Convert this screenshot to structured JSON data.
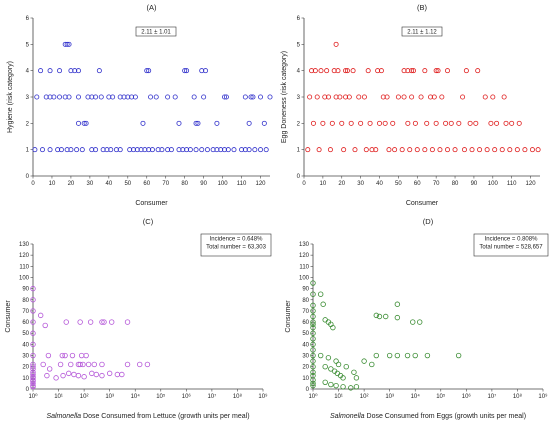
{
  "chart_data": [
    {
      "id": "A",
      "type": "scatter",
      "panel_label": "(A)",
      "annotation_lines": [
        "2.11 ± 1.01"
      ],
      "xlabel": "Consumer",
      "ylabel": "Hygiene (risk category)",
      "xlim": [
        0,
        125
      ],
      "ylim": [
        0,
        6
      ],
      "xticks": [
        0,
        10,
        20,
        30,
        40,
        50,
        60,
        70,
        80,
        90,
        100,
        110,
        120
      ],
      "yticks": [
        0,
        1,
        2,
        3,
        4,
        5,
        6
      ],
      "xscale": "linear",
      "color": "#3333cc",
      "x": [
        1,
        5,
        9,
        13,
        15,
        18,
        20,
        23,
        26,
        31,
        33,
        37,
        39,
        41,
        44,
        46,
        51,
        53,
        55,
        57,
        59,
        61,
        63,
        66,
        68,
        71,
        73,
        77,
        79,
        81,
        83,
        86,
        89,
        92,
        95,
        97,
        99,
        101,
        103,
        106,
        110,
        112,
        114,
        117,
        120,
        123,
        2,
        7,
        9,
        11,
        14,
        17,
        19,
        24,
        29,
        31,
        33,
        36,
        40,
        42,
        46,
        48,
        50,
        52,
        54,
        62,
        65,
        71,
        75,
        85,
        90,
        101,
        102,
        112,
        115,
        116,
        120,
        125,
        24,
        27,
        28,
        58,
        77,
        86,
        87,
        97,
        114,
        122,
        4,
        9,
        14,
        20,
        22,
        24,
        35,
        60,
        61,
        80,
        81,
        89,
        91,
        17,
        18,
        19
      ],
      "y": [
        1,
        1,
        1,
        1,
        1,
        1,
        1,
        1,
        1,
        1,
        1,
        1,
        1,
        1,
        1,
        1,
        1,
        1,
        1,
        1,
        1,
        1,
        1,
        1,
        1,
        1,
        1,
        1,
        1,
        1,
        1,
        1,
        1,
        1,
        1,
        1,
        1,
        1,
        1,
        1,
        1,
        1,
        1,
        1,
        1,
        1,
        3,
        3,
        3,
        3,
        3,
        3,
        3,
        3,
        3,
        3,
        3,
        3,
        3,
        3,
        3,
        3,
        3,
        3,
        3,
        3,
        3,
        3,
        3,
        3,
        3,
        3,
        3,
        3,
        3,
        3,
        3,
        3,
        2,
        2,
        2,
        2,
        2,
        2,
        2,
        2,
        2,
        2,
        4,
        4,
        4,
        4,
        4,
        4,
        4,
        4,
        4,
        4,
        4,
        4,
        4,
        5,
        5,
        5
      ]
    },
    {
      "id": "B",
      "type": "scatter",
      "panel_label": "(B)",
      "annotation_lines": [
        "2.11 ± 1.12"
      ],
      "xlabel": "Consumer",
      "ylabel": "Egg Doneness (risk category)",
      "xlim": [
        0,
        125
      ],
      "ylim": [
        0,
        6
      ],
      "xticks": [
        0,
        10,
        20,
        30,
        40,
        50,
        60,
        70,
        80,
        90,
        100,
        110,
        120
      ],
      "yticks": [
        0,
        1,
        2,
        3,
        4,
        5,
        6
      ],
      "xscale": "linear",
      "color": "#e02020",
      "x": [
        2,
        8,
        14,
        21,
        27,
        33,
        36,
        38,
        45,
        48,
        52,
        56,
        60,
        64,
        68,
        72,
        76,
        80,
        85,
        89,
        93,
        97,
        101,
        105,
        109,
        113,
        117,
        121,
        124,
        5,
        10,
        15,
        20,
        25,
        30,
        35,
        40,
        43,
        47,
        55,
        59,
        65,
        70,
        75,
        78,
        82,
        88,
        91,
        99,
        102,
        107,
        110,
        114,
        3,
        7,
        11,
        13,
        17,
        19,
        22,
        24,
        29,
        32,
        42,
        44,
        50,
        53,
        57,
        62,
        67,
        69,
        73,
        84,
        96,
        100,
        106,
        4,
        6,
        9,
        12,
        16,
        18,
        22,
        23,
        26,
        34,
        39,
        41,
        53,
        55,
        57,
        58,
        64,
        70,
        71,
        76,
        86,
        92,
        17
      ],
      "y": [
        1,
        1,
        1,
        1,
        1,
        1,
        1,
        1,
        1,
        1,
        1,
        1,
        1,
        1,
        1,
        1,
        1,
        1,
        1,
        1,
        1,
        1,
        1,
        1,
        1,
        1,
        1,
        1,
        1,
        2,
        2,
        2,
        2,
        2,
        2,
        2,
        2,
        2,
        2,
        2,
        2,
        2,
        2,
        2,
        2,
        2,
        2,
        2,
        2,
        2,
        2,
        2,
        2,
        3,
        3,
        3,
        3,
        3,
        3,
        3,
        3,
        3,
        3,
        3,
        3,
        3,
        3,
        3,
        3,
        3,
        3,
        3,
        3,
        3,
        3,
        3,
        4,
        4,
        4,
        4,
        4,
        4,
        4,
        4,
        4,
        4,
        4,
        4,
        4,
        4,
        4,
        4,
        4,
        4,
        4,
        4,
        4,
        4,
        5
      ]
    },
    {
      "id": "C",
      "type": "scatter",
      "panel_label": "(C)",
      "annotation_lines": [
        "Incidence = 0.648%",
        "Total number = 63,303"
      ],
      "xlabel_italic": "Salmonella",
      "xlabel_rest": " Dose Consumed from Lettuce (growth units per meal)",
      "ylabel": "Consumer",
      "xscale": "log",
      "xlim": [
        1,
        1000000000
      ],
      "ylim": [
        0,
        130
      ],
      "xticks": [
        1,
        10,
        100,
        1000,
        10000,
        100000,
        1000000,
        10000000,
        100000000,
        1000000000
      ],
      "xtick_labels": [
        "10⁰",
        "10¹",
        "10²",
        "10³",
        "10⁴",
        "10⁵",
        "10⁶",
        "10⁷",
        "10⁸",
        "10⁹"
      ],
      "yticks": [
        0,
        10,
        20,
        30,
        40,
        50,
        60,
        70,
        80,
        90,
        100,
        110,
        120,
        130
      ],
      "color": "#b455d8",
      "x": [
        1,
        1,
        1,
        1,
        1,
        1,
        1,
        1,
        1,
        1,
        1,
        1,
        1,
        1,
        1,
        1,
        1,
        1,
        1,
        2,
        3,
        4,
        2.5,
        4.5,
        3.5,
        8,
        15,
        25,
        40,
        60,
        100,
        200,
        300,
        500,
        1000,
        2000,
        3000,
        5000,
        15000,
        30000,
        12,
        30,
        60,
        70,
        150,
        250,
        500,
        14,
        18,
        35,
        80,
        120,
        90,
        20,
        70,
        180,
        500,
        600,
        1200,
        5000
      ],
      "y": [
        90,
        80,
        70,
        60,
        50,
        40,
        30,
        22,
        20,
        18,
        15,
        13,
        11,
        10,
        8,
        7,
        5,
        3,
        2,
        66,
        57,
        30,
        22,
        18,
        12,
        10,
        12,
        14,
        13,
        12,
        11,
        14,
        13,
        12,
        14,
        13,
        13,
        22,
        22,
        22,
        22,
        22,
        22,
        22,
        22,
        22,
        22,
        30,
        30,
        30,
        30,
        30,
        22,
        60,
        60,
        60,
        60,
        60,
        60,
        60
      ]
    },
    {
      "id": "D",
      "type": "scatter",
      "panel_label": "(D)",
      "annotation_lines": [
        "Incidence = 0.808%",
        "Total number = 528,657"
      ],
      "xlabel_italic": "Salmonella",
      "xlabel_rest": " Dose Consumed from Eggs (growth units per meal)",
      "ylabel": "Consumer",
      "xscale": "log",
      "xlim": [
        1,
        1000000000
      ],
      "ylim": [
        0,
        130
      ],
      "xticks": [
        1,
        10,
        100,
        1000,
        10000,
        100000,
        1000000,
        10000000,
        100000000,
        1000000000
      ],
      "xtick_labels": [
        "10⁰",
        "10¹",
        "10²",
        "10³",
        "10⁴",
        "10⁵",
        "10⁶",
        "10⁷",
        "10⁸",
        "10⁹"
      ],
      "yticks": [
        0,
        10,
        20,
        30,
        40,
        50,
        60,
        70,
        80,
        90,
        100,
        110,
        120,
        130
      ],
      "color": "#3a8c32",
      "x": [
        1,
        1,
        1,
        1,
        1,
        1,
        1,
        1,
        1,
        1,
        1,
        1,
        1,
        1,
        1,
        1,
        1,
        1,
        1,
        1,
        2,
        2.5,
        3,
        4,
        5,
        6,
        3,
        5,
        7,
        9,
        12,
        15,
        2,
        4,
        8,
        10,
        20,
        40,
        50,
        3,
        5,
        8,
        15,
        30,
        50,
        100,
        200,
        300,
        1000,
        2000,
        5000,
        10000,
        30000,
        400,
        2000,
        8000,
        15000,
        500000,
        300,
        700,
        2000
      ],
      "y": [
        95,
        85,
        75,
        70,
        65,
        60,
        58,
        55,
        50,
        45,
        40,
        35,
        30,
        25,
        20,
        15,
        12,
        8,
        5,
        3,
        85,
        76,
        62,
        60,
        58,
        55,
        20,
        18,
        16,
        14,
        12,
        10,
        30,
        28,
        25,
        22,
        20,
        15,
        10,
        6,
        4,
        3,
        2,
        1,
        2,
        25,
        22,
        30,
        30,
        30,
        30,
        30,
        30,
        65,
        76,
        60,
        60,
        30,
        66,
        65,
        64
      ]
    }
  ]
}
